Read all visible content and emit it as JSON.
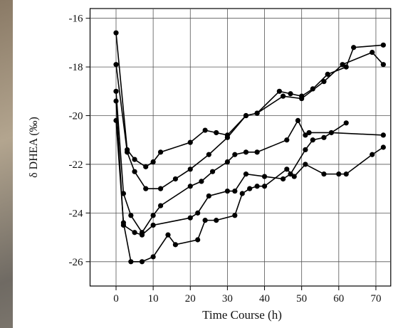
{
  "chart_data": {
    "type": "line",
    "xlabel": "Time Course (h)",
    "ylabel": "δ DHEA (‰)",
    "xlim": [
      -7,
      74
    ],
    "xticks": [
      0,
      10,
      20,
      30,
      40,
      50,
      60,
      70
    ],
    "ylim": [
      -27,
      -15.6
    ],
    "yticks": [
      -26,
      -24,
      -22,
      -20,
      -18,
      -16
    ],
    "grid": true,
    "series": [
      {
        "color": "#000000",
        "x": [
          0,
          3,
          5,
          8,
          10,
          12,
          20,
          24,
          27,
          30,
          35,
          38,
          44,
          47,
          50,
          53,
          57,
          62,
          64,
          72
        ],
        "values": [
          -16.6,
          -21.4,
          -21.8,
          -22.1,
          -21.9,
          -21.5,
          -21.1,
          -20.6,
          -20.7,
          -20.8,
          -20.0,
          -19.9,
          -19.0,
          -19.1,
          -19.2,
          -18.9,
          -18.3,
          -18.0,
          -17.2,
          -17.1
        ]
      },
      {
        "color": "#000000",
        "x": [
          0,
          3,
          5,
          8,
          12,
          16,
          20,
          25,
          30,
          35,
          38,
          45,
          50,
          56,
          61,
          69,
          72
        ],
        "values": [
          -17.9,
          -21.5,
          -22.3,
          -23.0,
          -23.0,
          -22.6,
          -22.2,
          -21.6,
          -20.9,
          -20.0,
          -19.9,
          -19.2,
          -19.3,
          -18.6,
          -17.9,
          -17.4,
          -17.9
        ]
      },
      {
        "color": "#000000",
        "x": [
          0,
          2,
          4,
          7,
          10,
          12,
          20,
          23,
          26,
          30,
          32,
          35,
          38,
          46,
          49,
          51,
          52,
          58,
          72
        ],
        "values": [
          -19.0,
          -23.2,
          -24.1,
          -24.8,
          -24.1,
          -23.7,
          -22.9,
          -22.7,
          -22.3,
          -21.9,
          -21.6,
          -21.5,
          -21.5,
          -21.0,
          -20.2,
          -20.8,
          -20.7,
          -20.7,
          -20.8
        ]
      },
      {
        "color": "#000000",
        "x": [
          0,
          2,
          5,
          7,
          10,
          20,
          22,
          25,
          30,
          32,
          35,
          40,
          45,
          47,
          51,
          53,
          56,
          62
        ],
        "values": [
          -19.4,
          -24.5,
          -24.8,
          -24.9,
          -24.5,
          -24.2,
          -24.0,
          -23.3,
          -23.1,
          -23.1,
          -22.4,
          -22.5,
          -22.6,
          -22.4,
          -21.4,
          -21.0,
          -20.9,
          -20.3
        ]
      },
      {
        "color": "#000000",
        "x": [
          0,
          2,
          4,
          7,
          10,
          14,
          16,
          22,
          24,
          27,
          32,
          34,
          36,
          38,
          40,
          46,
          48,
          51,
          56,
          60,
          62,
          69,
          72
        ],
        "values": [
          -20.2,
          -24.4,
          -26.0,
          -26.0,
          -25.8,
          -24.9,
          -25.3,
          -25.1,
          -24.3,
          -24.3,
          -24.1,
          -23.2,
          -23.0,
          -22.9,
          -22.9,
          -22.2,
          -22.5,
          -22.0,
          -22.4,
          -22.4,
          -22.4,
          -21.6,
          -21.3
        ]
      }
    ]
  }
}
